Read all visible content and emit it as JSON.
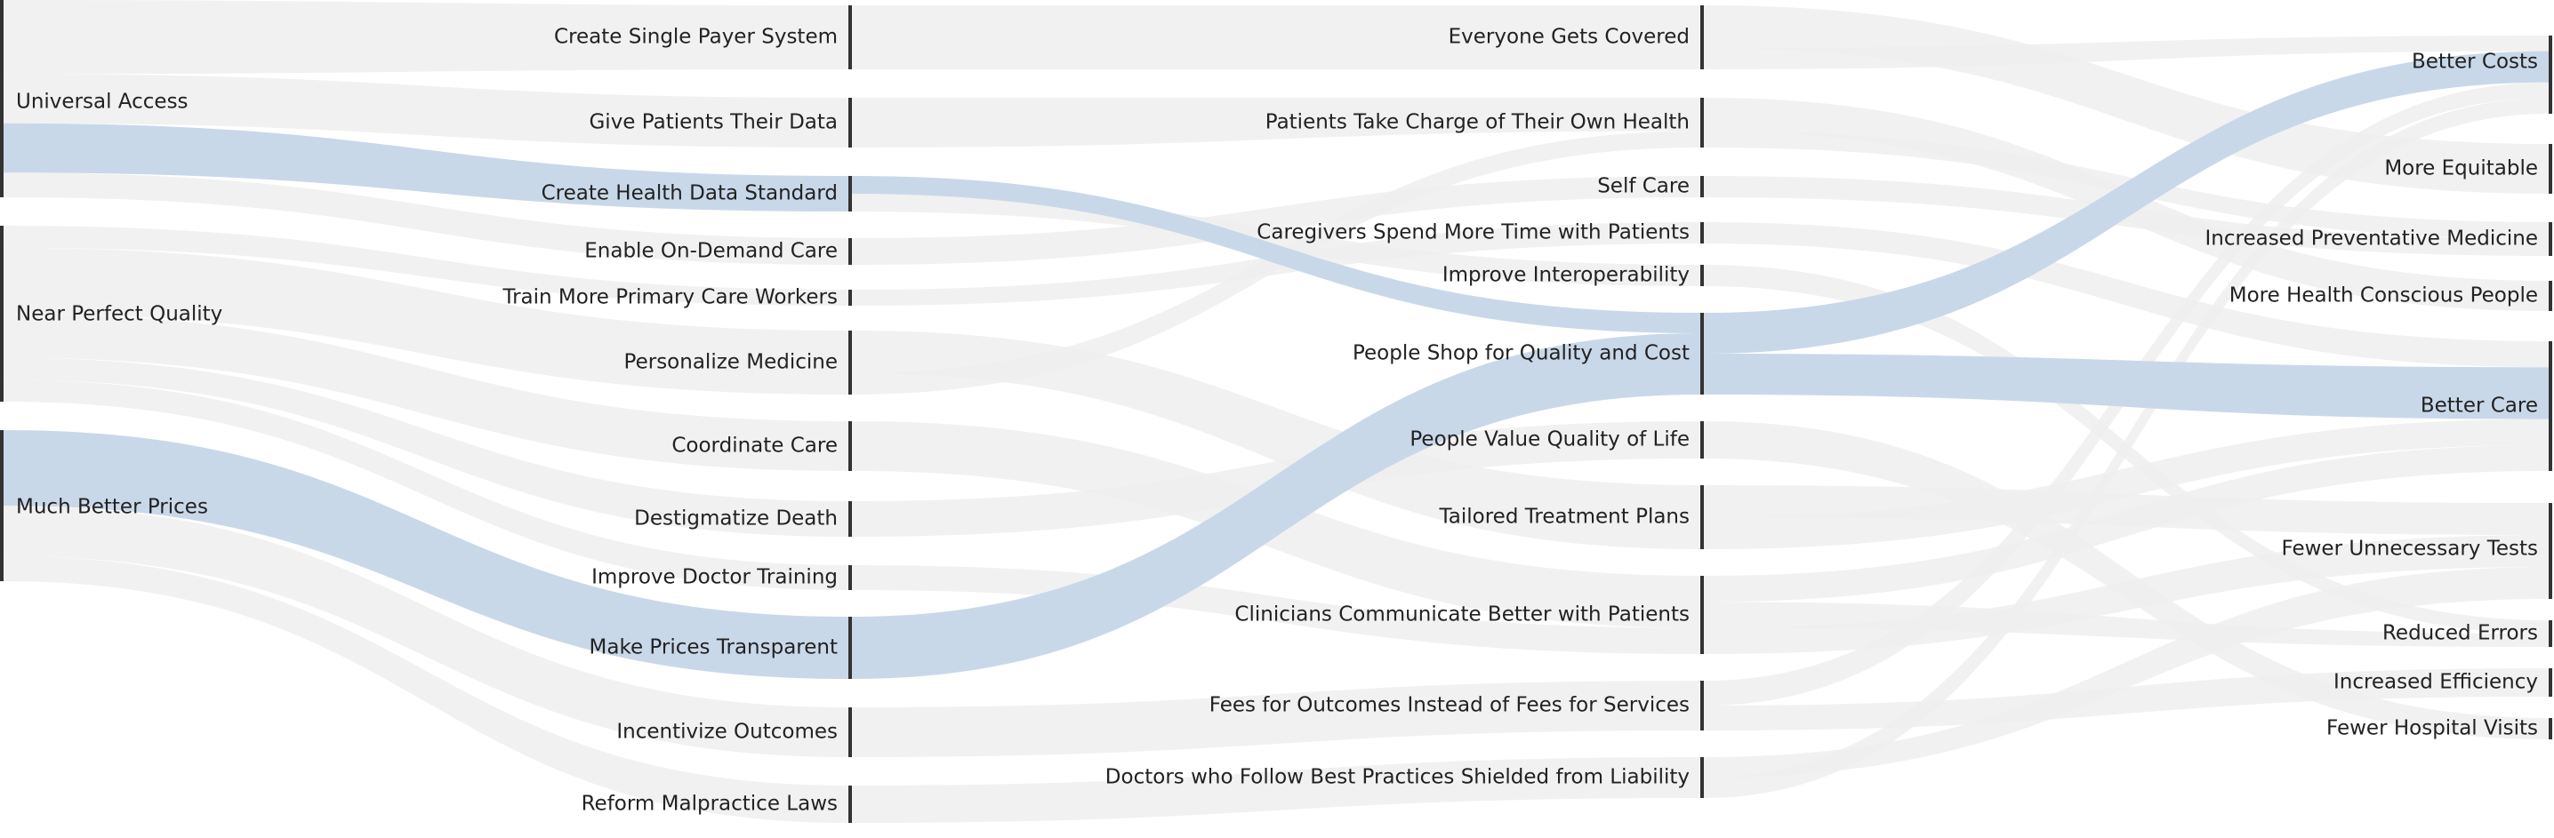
{
  "diagram": {
    "type": "sankey",
    "colors": {
      "link": "#efefef",
      "highlight": "#c6d6e8",
      "node": "#333333",
      "text": "#222222"
    },
    "columns": [
      {
        "id": "goals",
        "nodes": [
          {
            "id": "universal-access",
            "label": "Universal Access"
          },
          {
            "id": "near-perfect-quality",
            "label": "Near Perfect Quality"
          },
          {
            "id": "much-better-prices",
            "label": "Much Better Prices"
          }
        ]
      },
      {
        "id": "actions",
        "nodes": [
          {
            "id": "create-single-payer-system",
            "label": "Create Single Payer System"
          },
          {
            "id": "give-patients-their-data",
            "label": "Give Patients Their Data"
          },
          {
            "id": "create-health-data-standard",
            "label": "Create Health Data Standard"
          },
          {
            "id": "enable-on-demand-care",
            "label": "Enable On-Demand Care"
          },
          {
            "id": "train-more-primary-care-workers",
            "label": "Train More Primary Care Workers"
          },
          {
            "id": "personalize-medicine",
            "label": "Personalize Medicine"
          },
          {
            "id": "coordinate-care",
            "label": "Coordinate Care"
          },
          {
            "id": "destigmatize-death",
            "label": "Destigmatize Death"
          },
          {
            "id": "improve-doctor-training",
            "label": "Improve Doctor Training"
          },
          {
            "id": "make-prices-transparent",
            "label": "Make Prices Transparent"
          },
          {
            "id": "incentivize-outcomes",
            "label": "Incentivize Outcomes"
          },
          {
            "id": "reform-malpractice-laws",
            "label": "Reform Malpractice Laws"
          }
        ]
      },
      {
        "id": "effects",
        "nodes": [
          {
            "id": "everyone-gets-covered",
            "label": "Everyone Gets Covered"
          },
          {
            "id": "patients-take-charge",
            "label": "Patients Take Charge of Their Own Health"
          },
          {
            "id": "self-care",
            "label": "Self Care"
          },
          {
            "id": "caregivers-spend-more-time",
            "label": "Caregivers Spend More Time with Patients"
          },
          {
            "id": "improve-interoperability",
            "label": "Improve Interoperability"
          },
          {
            "id": "people-shop",
            "label": "People Shop for Quality and Cost"
          },
          {
            "id": "people-value-quality-of-life",
            "label": "People Value Quality of Life"
          },
          {
            "id": "tailored-treatment-plans",
            "label": "Tailored Treatment Plans"
          },
          {
            "id": "clinicians-communicate",
            "label": "Clinicians Communicate Better with Patients"
          },
          {
            "id": "fees-for-outcomes",
            "label": "Fees for Outcomes Instead of Fees for Services"
          },
          {
            "id": "doctors-shielded",
            "label": "Doctors who Follow Best Practices Shielded from Liability"
          }
        ]
      },
      {
        "id": "outcomes",
        "nodes": [
          {
            "id": "better-costs",
            "label": "Better Costs"
          },
          {
            "id": "more-equitable",
            "label": "More Equitable"
          },
          {
            "id": "increased-preventative-medicine",
            "label": "Increased Preventative Medicine"
          },
          {
            "id": "more-health-conscious-people",
            "label": "More Health Conscious People"
          },
          {
            "id": "better-care",
            "label": "Better Care"
          },
          {
            "id": "fewer-unnecessary-tests",
            "label": "Fewer Unnecessary Tests"
          },
          {
            "id": "reduced-errors",
            "label": "Reduced Errors"
          },
          {
            "id": "increased-efficiency",
            "label": "Increased Efficiency"
          },
          {
            "id": "fewer-hospital-visits",
            "label": "Fewer Hospital Visits"
          }
        ]
      }
    ],
    "links": [
      {
        "source": "universal-access",
        "target": "create-single-payer-system",
        "value": 3,
        "highlight": false
      },
      {
        "source": "universal-access",
        "target": "give-patients-their-data",
        "value": 2,
        "highlight": false
      },
      {
        "source": "universal-access",
        "target": "create-health-data-standard",
        "value": 2,
        "highlight": true
      },
      {
        "source": "universal-access",
        "target": "enable-on-demand-care",
        "value": 1,
        "highlight": false
      },
      {
        "source": "near-perfect-quality",
        "target": "train-more-primary-care-workers",
        "value": 1,
        "highlight": false
      },
      {
        "source": "near-perfect-quality",
        "target": "personalize-medicine",
        "value": 3,
        "highlight": false
      },
      {
        "source": "near-perfect-quality",
        "target": "coordinate-care",
        "value": 2,
        "highlight": false
      },
      {
        "source": "near-perfect-quality",
        "target": "destigmatize-death",
        "value": 1,
        "highlight": false
      },
      {
        "source": "near-perfect-quality",
        "target": "improve-doctor-training",
        "value": 1,
        "highlight": false
      },
      {
        "source": "much-better-prices",
        "target": "make-prices-transparent",
        "value": 3,
        "highlight": true
      },
      {
        "source": "much-better-prices",
        "target": "incentivize-outcomes",
        "value": 2,
        "highlight": false
      },
      {
        "source": "much-better-prices",
        "target": "reform-malpractice-laws",
        "value": 1,
        "highlight": false
      },
      {
        "source": "create-single-payer-system",
        "target": "everyone-gets-covered",
        "value": 3,
        "highlight": false
      },
      {
        "source": "give-patients-their-data",
        "target": "patients-take-charge",
        "value": 2,
        "highlight": false
      },
      {
        "source": "create-health-data-standard",
        "target": "people-shop",
        "value": 1,
        "highlight": true
      },
      {
        "source": "create-health-data-standard",
        "target": "improve-interoperability",
        "value": 1,
        "highlight": false
      },
      {
        "source": "enable-on-demand-care",
        "target": "self-care",
        "value": 1,
        "highlight": false
      },
      {
        "source": "train-more-primary-care-workers",
        "target": "caregivers-spend-more-time",
        "value": 1,
        "highlight": false
      },
      {
        "source": "personalize-medicine",
        "target": "tailored-treatment-plans",
        "value": 2,
        "highlight": false
      },
      {
        "source": "personalize-medicine",
        "target": "patients-take-charge",
        "value": 1,
        "highlight": false
      },
      {
        "source": "coordinate-care",
        "target": "clinicians-communicate",
        "value": 2,
        "highlight": false
      },
      {
        "source": "destigmatize-death",
        "target": "people-value-quality-of-life",
        "value": 1,
        "highlight": false
      },
      {
        "source": "improve-doctor-training",
        "target": "clinicians-communicate",
        "value": 1,
        "highlight": false
      },
      {
        "source": "make-prices-transparent",
        "target": "people-shop",
        "value": 3,
        "highlight": true
      },
      {
        "source": "incentivize-outcomes",
        "target": "fees-for-outcomes",
        "value": 2,
        "highlight": false
      },
      {
        "source": "reform-malpractice-laws",
        "target": "doctors-shielded",
        "value": 2,
        "highlight": false
      },
      {
        "source": "everyone-gets-covered",
        "target": "more-equitable",
        "value": 2,
        "highlight": false
      },
      {
        "source": "everyone-gets-covered",
        "target": "better-costs",
        "value": 1,
        "highlight": false
      },
      {
        "source": "patients-take-charge",
        "target": "more-health-conscious-people",
        "value": 2,
        "highlight": false
      },
      {
        "source": "patients-take-charge",
        "target": "increased-preventative-medicine",
        "value": 1,
        "highlight": false
      },
      {
        "source": "self-care",
        "target": "increased-preventative-medicine",
        "value": 1,
        "highlight": false
      },
      {
        "source": "caregivers-spend-more-time",
        "target": "better-care",
        "value": 1,
        "highlight": false
      },
      {
        "source": "improve-interoperability",
        "target": "reduced-errors",
        "value": 1,
        "highlight": false
      },
      {
        "source": "people-shop",
        "target": "better-costs",
        "value": 2,
        "highlight": true
      },
      {
        "source": "people-shop",
        "target": "better-care",
        "value": 2,
        "highlight": true
      },
      {
        "source": "people-value-quality-of-life",
        "target": "fewer-hospital-visits",
        "value": 1,
        "highlight": false
      },
      {
        "source": "tailored-treatment-plans",
        "target": "fewer-unnecessary-tests",
        "value": 1,
        "highlight": false
      },
      {
        "source": "tailored-treatment-plans",
        "target": "better-care",
        "value": 1,
        "highlight": false
      },
      {
        "source": "clinicians-communicate",
        "target": "better-care",
        "value": 1,
        "highlight": false
      },
      {
        "source": "clinicians-communicate",
        "target": "reduced-errors",
        "value": 1,
        "highlight": false
      },
      {
        "source": "clinicians-communicate",
        "target": "fewer-unnecessary-tests",
        "value": 1,
        "highlight": false
      },
      {
        "source": "fees-for-outcomes",
        "target": "better-costs",
        "value": 1,
        "highlight": false
      },
      {
        "source": "fees-for-outcomes",
        "target": "increased-efficiency",
        "value": 1,
        "highlight": false
      },
      {
        "source": "doctors-shielded",
        "target": "fewer-unnecessary-tests",
        "value": 1,
        "highlight": false
      },
      {
        "source": "doctors-shielded",
        "target": "better-costs",
        "value": 1,
        "highlight": false
      }
    ]
  }
}
